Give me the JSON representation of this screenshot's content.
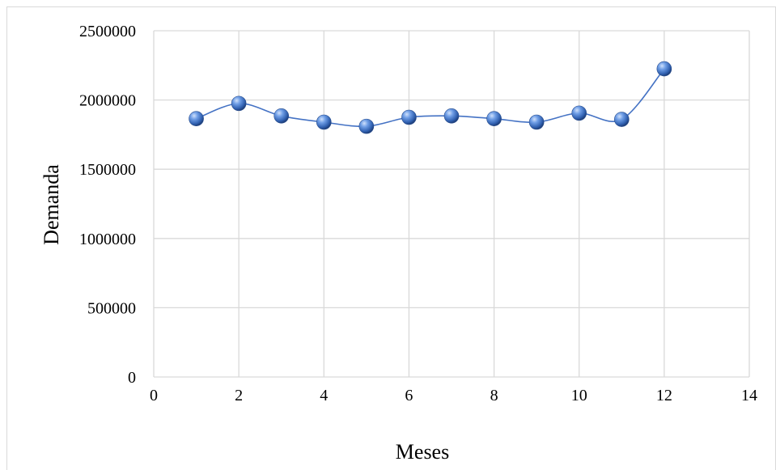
{
  "chart_data": {
    "type": "line",
    "title": "",
    "xlabel": "Meses",
    "ylabel": "Demanda",
    "xlim": [
      0,
      14
    ],
    "ylim": [
      0,
      2500000
    ],
    "x_ticks": [
      "0",
      "2",
      "4",
      "6",
      "8",
      "10",
      "12",
      "14"
    ],
    "y_ticks": [
      "0",
      "500000",
      "1000000",
      "1500000",
      "2000000",
      "2500000"
    ],
    "x_tick_values": [
      0,
      2,
      4,
      6,
      8,
      10,
      12,
      14
    ],
    "y_tick_values": [
      0,
      500000,
      1000000,
      1500000,
      2000000,
      2500000
    ],
    "grid": true,
    "legend": "none",
    "smooth": true,
    "marker": "sphere",
    "series": [
      {
        "color": "#4472c4",
        "x": [
          1,
          2,
          3,
          4,
          5,
          6,
          7,
          8,
          9,
          10,
          11,
          12
        ],
        "y": [
          1865000,
          1975000,
          1885000,
          1840000,
          1810000,
          1875000,
          1885000,
          1865000,
          1840000,
          1905000,
          1860000,
          2225000
        ]
      }
    ]
  }
}
